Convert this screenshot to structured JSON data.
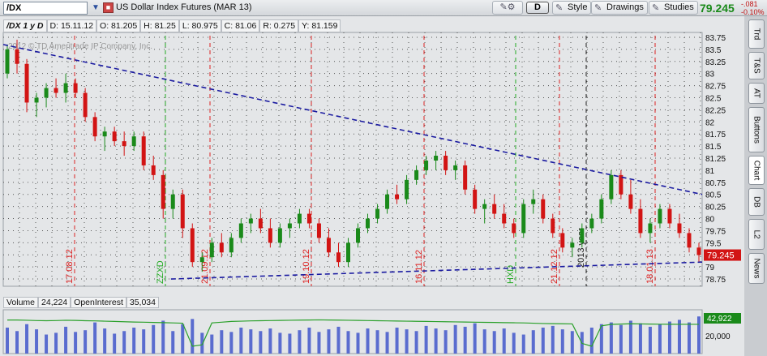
{
  "toolbar": {
    "symbol": "/DX",
    "description": "US Dollar Index Futures (MAR 13)",
    "tools_icon": "wrench-pencil-icon",
    "aggregation": "D",
    "style_label": "Style",
    "drawings_label": "Drawings",
    "studies_label": "Studies",
    "last_price": "79.245",
    "change": "-.081",
    "change_pct": "-0.10%"
  },
  "info": {
    "period": "/DX 1 y D",
    "date": "D: 15.11.12",
    "open": "O: 81.205",
    "high": "H: 81.25",
    "low": "L: 80.975",
    "close": "C: 81.06",
    "range": "R: 0.275",
    "y": "Y: 81.159"
  },
  "chart": {
    "watermark": "2012 © TD Ameritrade IP Company, Inc.",
    "price_label": "79.245",
    "volume_axis_label": "42,922",
    "volume_tick_20000": "20,000",
    "y_ticks": [
      "83.75",
      "83.5",
      "83.25",
      "83",
      "82.75",
      "82.5",
      "82.25",
      "82",
      "81.75",
      "81.5",
      "81.25",
      "81",
      "80.75",
      "80.5",
      "80.25",
      "80",
      "79.75",
      "79.5",
      "79.25",
      "79",
      "78.75"
    ],
    "vertical_markers": [
      {
        "label": "17.08.12",
        "color": "#d22",
        "x": 92
      },
      {
        "label": "ZZXD",
        "color": "#2a2",
        "x": 204
      },
      {
        "label": "21.09.12",
        "color": "#d22",
        "x": 259
      },
      {
        "label": "19.10.12",
        "color": "#d22",
        "x": 384
      },
      {
        "label": "16.11.12",
        "color": "#d22",
        "x": 523
      },
      {
        "label": "HXD",
        "color": "#2a2",
        "x": 636
      },
      {
        "label": "21.12.12",
        "color": "#d22",
        "x": 690
      },
      {
        "label": "2013 year",
        "color": "#222",
        "x": 723
      },
      {
        "label": "18.01.13",
        "color": "#d22",
        "x": 808
      }
    ],
    "colors": {
      "up": "#1a8a1a",
      "down": "#d21414",
      "trend": "#1a1aa0",
      "volume": "#5a6ccf",
      "oi": "#2aa02a"
    }
  },
  "volume_bar": {
    "volume_label": "Volume",
    "volume_value": "24,224",
    "oi_label": "OpenInterest",
    "oi_value": "35,034"
  },
  "right_tabs": [
    "Trd",
    "T&S",
    "AT",
    "Buttons",
    "Chart",
    "DB",
    "L2",
    "News"
  ],
  "chart_data": {
    "type": "candlestick",
    "title": "US Dollar Index Futures (MAR 13)",
    "ylim": [
      78.6,
      83.85
    ],
    "x_start": "2012-07",
    "trendlines": [
      {
        "name": "upper",
        "from": [
          0,
          83.6
        ],
        "to": [
          1,
          80.5
        ]
      },
      {
        "name": "lower",
        "from": [
          0.24,
          78.75
        ],
        "to": [
          1,
          79.1
        ]
      }
    ],
    "candles": [
      [
        83.0,
        83.6,
        82.9,
        83.5
      ],
      [
        83.5,
        83.7,
        83.0,
        83.2
      ],
      [
        83.2,
        83.3,
        82.2,
        82.4
      ],
      [
        82.4,
        82.6,
        82.1,
        82.5
      ],
      [
        82.5,
        82.8,
        82.3,
        82.7
      ],
      [
        82.7,
        82.9,
        82.5,
        82.6
      ],
      [
        82.6,
        83.0,
        82.4,
        82.8
      ],
      [
        82.8,
        82.9,
        82.5,
        82.6
      ],
      [
        82.6,
        82.7,
        82.0,
        82.1
      ],
      [
        82.1,
        82.2,
        81.6,
        81.7
      ],
      [
        81.7,
        81.9,
        81.4,
        81.8
      ],
      [
        81.8,
        81.9,
        81.5,
        81.6
      ],
      [
        81.6,
        81.8,
        81.3,
        81.5
      ],
      [
        81.5,
        81.8,
        81.4,
        81.7
      ],
      [
        81.7,
        81.8,
        81.0,
        81.1
      ],
      [
        81.1,
        81.3,
        80.8,
        80.9
      ],
      [
        80.9,
        81.0,
        80.0,
        80.2
      ],
      [
        80.2,
        80.6,
        80.0,
        80.5
      ],
      [
        80.5,
        80.6,
        79.6,
        79.8
      ],
      [
        79.8,
        79.9,
        79.0,
        79.1
      ],
      [
        79.1,
        79.3,
        78.9,
        79.2
      ],
      [
        79.2,
        79.6,
        79.1,
        79.5
      ],
      [
        79.5,
        79.7,
        79.2,
        79.3
      ],
      [
        79.3,
        79.7,
        79.2,
        79.6
      ],
      [
        79.6,
        80.0,
        79.5,
        79.9
      ],
      [
        79.9,
        80.1,
        79.7,
        80.0
      ],
      [
        80.0,
        80.2,
        79.7,
        79.8
      ],
      [
        79.8,
        80.0,
        79.4,
        79.5
      ],
      [
        79.5,
        79.9,
        79.4,
        79.8
      ],
      [
        79.8,
        80.0,
        79.6,
        79.9
      ],
      [
        79.9,
        80.2,
        79.8,
        80.1
      ],
      [
        80.1,
        80.2,
        79.8,
        79.9
      ],
      [
        79.9,
        80.0,
        79.5,
        79.6
      ],
      [
        79.6,
        79.8,
        79.2,
        79.3
      ],
      [
        79.3,
        79.5,
        79.0,
        79.1
      ],
      [
        79.1,
        79.6,
        79.0,
        79.5
      ],
      [
        79.5,
        79.9,
        79.4,
        79.8
      ],
      [
        79.8,
        80.1,
        79.7,
        80.0
      ],
      [
        80.0,
        80.3,
        79.9,
        80.2
      ],
      [
        80.2,
        80.6,
        80.1,
        80.5
      ],
      [
        80.5,
        80.7,
        80.3,
        80.4
      ],
      [
        80.4,
        80.9,
        80.3,
        80.8
      ],
      [
        80.8,
        81.1,
        80.7,
        81.0
      ],
      [
        81.0,
        81.3,
        80.9,
        81.2
      ],
      [
        81.2,
        81.4,
        81.0,
        81.3
      ],
      [
        81.3,
        81.4,
        80.9,
        81.0
      ],
      [
        81.0,
        81.2,
        80.8,
        81.1
      ],
      [
        81.1,
        81.2,
        80.5,
        80.6
      ],
      [
        80.6,
        80.7,
        80.1,
        80.2
      ],
      [
        80.2,
        80.4,
        79.9,
        80.3
      ],
      [
        80.3,
        80.5,
        80.0,
        80.1
      ],
      [
        80.1,
        80.3,
        79.8,
        79.9
      ],
      [
        79.9,
        80.0,
        79.6,
        79.7
      ],
      [
        79.7,
        80.4,
        79.6,
        80.3
      ],
      [
        80.3,
        80.6,
        80.1,
        80.4
      ],
      [
        80.4,
        80.5,
        79.9,
        80.0
      ],
      [
        80.0,
        80.1,
        79.6,
        79.7
      ],
      [
        79.7,
        79.8,
        79.3,
        79.4
      ],
      [
        79.4,
        79.6,
        79.2,
        79.5
      ],
      [
        79.5,
        79.9,
        79.4,
        79.8
      ],
      [
        79.8,
        80.1,
        79.7,
        80.0
      ],
      [
        80.0,
        80.5,
        79.9,
        80.4
      ],
      [
        80.4,
        81.0,
        80.3,
        80.9
      ],
      [
        80.9,
        81.0,
        80.4,
        80.5
      ],
      [
        80.5,
        80.8,
        80.1,
        80.2
      ],
      [
        80.2,
        80.4,
        79.6,
        79.7
      ],
      [
        79.7,
        80.0,
        79.5,
        79.9
      ],
      [
        79.9,
        80.3,
        79.8,
        80.2
      ],
      [
        80.2,
        80.3,
        79.8,
        79.9
      ],
      [
        79.9,
        80.1,
        79.6,
        79.7
      ],
      [
        79.7,
        79.8,
        79.3,
        79.4
      ],
      [
        79.4,
        79.5,
        79.1,
        79.245
      ]
    ],
    "volume": [
      30000,
      26000,
      34000,
      28000,
      22000,
      24000,
      31000,
      25000,
      27000,
      36000,
      29000,
      23000,
      26000,
      30000,
      28000,
      33000,
      38000,
      26000,
      34000,
      40000,
      24000,
      22000,
      27000,
      25000,
      30000,
      28000,
      26000,
      29000,
      24000,
      23000,
      27000,
      30000,
      25000,
      28000,
      31000,
      26000,
      24000,
      29000,
      27000,
      25000,
      30000,
      28000,
      26000,
      32000,
      29000,
      27000,
      33000,
      31000,
      35000,
      28000,
      26000,
      29000,
      24000,
      22000,
      27000,
      30000,
      32000,
      28000,
      26000,
      25000,
      30000,
      34000,
      36000,
      33000,
      38000,
      35000,
      31000,
      34000,
      37000,
      39000,
      36000,
      42922
    ],
    "open_interest": [
      38000,
      38000,
      37800,
      37600,
      37500,
      37600,
      37800,
      37700,
      37500,
      37400,
      37200,
      37000,
      36800,
      36600,
      36500,
      36300,
      36200,
      36000,
      35800,
      20000,
      21000,
      36000,
      36500,
      37000,
      37200,
      37400,
      37500,
      37600,
      37700,
      37800,
      37900,
      38000,
      38100,
      38000,
      37900,
      37800,
      37700,
      37600,
      37500,
      37400,
      37300,
      37200,
      37100,
      37000,
      36900,
      36800,
      36700,
      36600,
      36500,
      36400,
      36300,
      36200,
      36100,
      36000,
      35800,
      35600,
      35500,
      35400,
      35300,
      22000,
      20000,
      34000,
      35000,
      35200,
      35400,
      35300,
      35200,
      35100,
      35050,
      35040,
      35035,
      35034
    ]
  }
}
